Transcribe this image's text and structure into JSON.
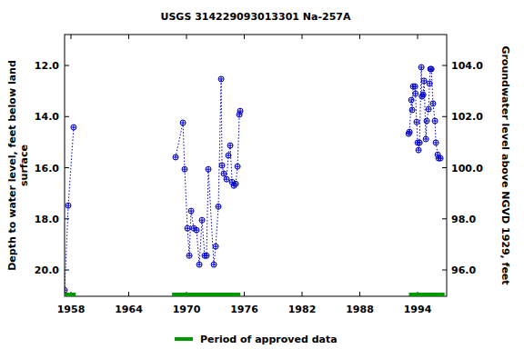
{
  "chart_data": {
    "type": "line",
    "title": "USGS 314229093013301 Na-257A",
    "ylabel": [
      "Depth to water level, feet below land",
      "surface"
    ],
    "y2label": "Groundwater level above NGVD 1929, feet",
    "x": [
      1957.34,
      1957.72,
      1958.28,
      null,
      1968.87,
      1969.63,
      1969.81,
      1970.1,
      1970.29,
      1970.48,
      1970.76,
      1971.04,
      1971.33,
      1971.61,
      1971.89,
      1972.08,
      1972.27,
      1972.84,
      1973.03,
      1973.31,
      1973.6,
      1973.69,
      1973.88,
      1974.16,
      1974.35,
      1974.54,
      1974.73,
      1974.92,
      1975.11,
      1975.3,
      1975.49,
      1975.58,
      null,
      1993.07,
      1993.16,
      1993.35,
      1993.44,
      1993.54,
      1993.73,
      1993.78,
      1993.9,
      1994.01,
      1994.1,
      1994.2,
      1994.39,
      1994.45,
      1994.58,
      1994.67,
      1994.86,
      1994.95,
      1995.14,
      1995.24,
      1995.33,
      1995.43,
      1995.6,
      1995.8,
      1995.9,
      1996.09,
      1996.18,
      1996.37
    ],
    "series": [
      {
        "name": "Depth to water level",
        "color": "#0000cc",
        "marker": "circle",
        "line_style": "dotted",
        "values": [
          20.79,
          17.48,
          14.42,
          null,
          15.59,
          14.24,
          16.06,
          18.37,
          19.44,
          17.69,
          18.37,
          18.44,
          19.79,
          18.05,
          19.44,
          19.44,
          16.06,
          19.79,
          19.08,
          17.52,
          12.53,
          15.91,
          16.23,
          16.45,
          15.52,
          15.13,
          16.56,
          16.7,
          16.63,
          15.95,
          13.92,
          13.78,
          null,
          14.67,
          14.6,
          13.35,
          13.74,
          12.82,
          12.82,
          13.1,
          14.21,
          15.02,
          15.31,
          15.02,
          12.07,
          13.21,
          13.14,
          12.6,
          14.88,
          14.17,
          13.71,
          12.71,
          12.14,
          12.14,
          13.49,
          14.17,
          15.02,
          15.49,
          15.63,
          15.63
        ]
      }
    ],
    "approved_periods": {
      "name": "Period of approved data",
      "color": "#009900",
      "ranges": [
        [
          1957.34,
          1958.5
        ],
        [
          1968.5,
          1975.6
        ],
        [
          1993.1,
          1996.8
        ]
      ]
    },
    "xlim": [
      1957.34,
      1997.02
    ],
    "xticks": [
      1958,
      1964,
      1970,
      1976,
      1982,
      1988,
      1994
    ],
    "ylim": [
      21.03,
      10.79
    ],
    "yticks": [
      {
        "value": 12,
        "label": "12.0"
      },
      {
        "value": 14,
        "label": "14.0"
      },
      {
        "value": 16,
        "label": "16.0"
      },
      {
        "value": 18,
        "label": "18.0"
      },
      {
        "value": 20,
        "label": "20.0"
      }
    ],
    "y2lim": [
      94.97,
      105.21
    ],
    "y2ticks": [
      {
        "value": 96,
        "label": "96.0"
      },
      {
        "value": 98,
        "label": "98.0"
      },
      {
        "value": 100,
        "label": "100.0"
      },
      {
        "value": 102,
        "label": "102.0"
      },
      {
        "value": 104,
        "label": "104.0"
      }
    ]
  }
}
